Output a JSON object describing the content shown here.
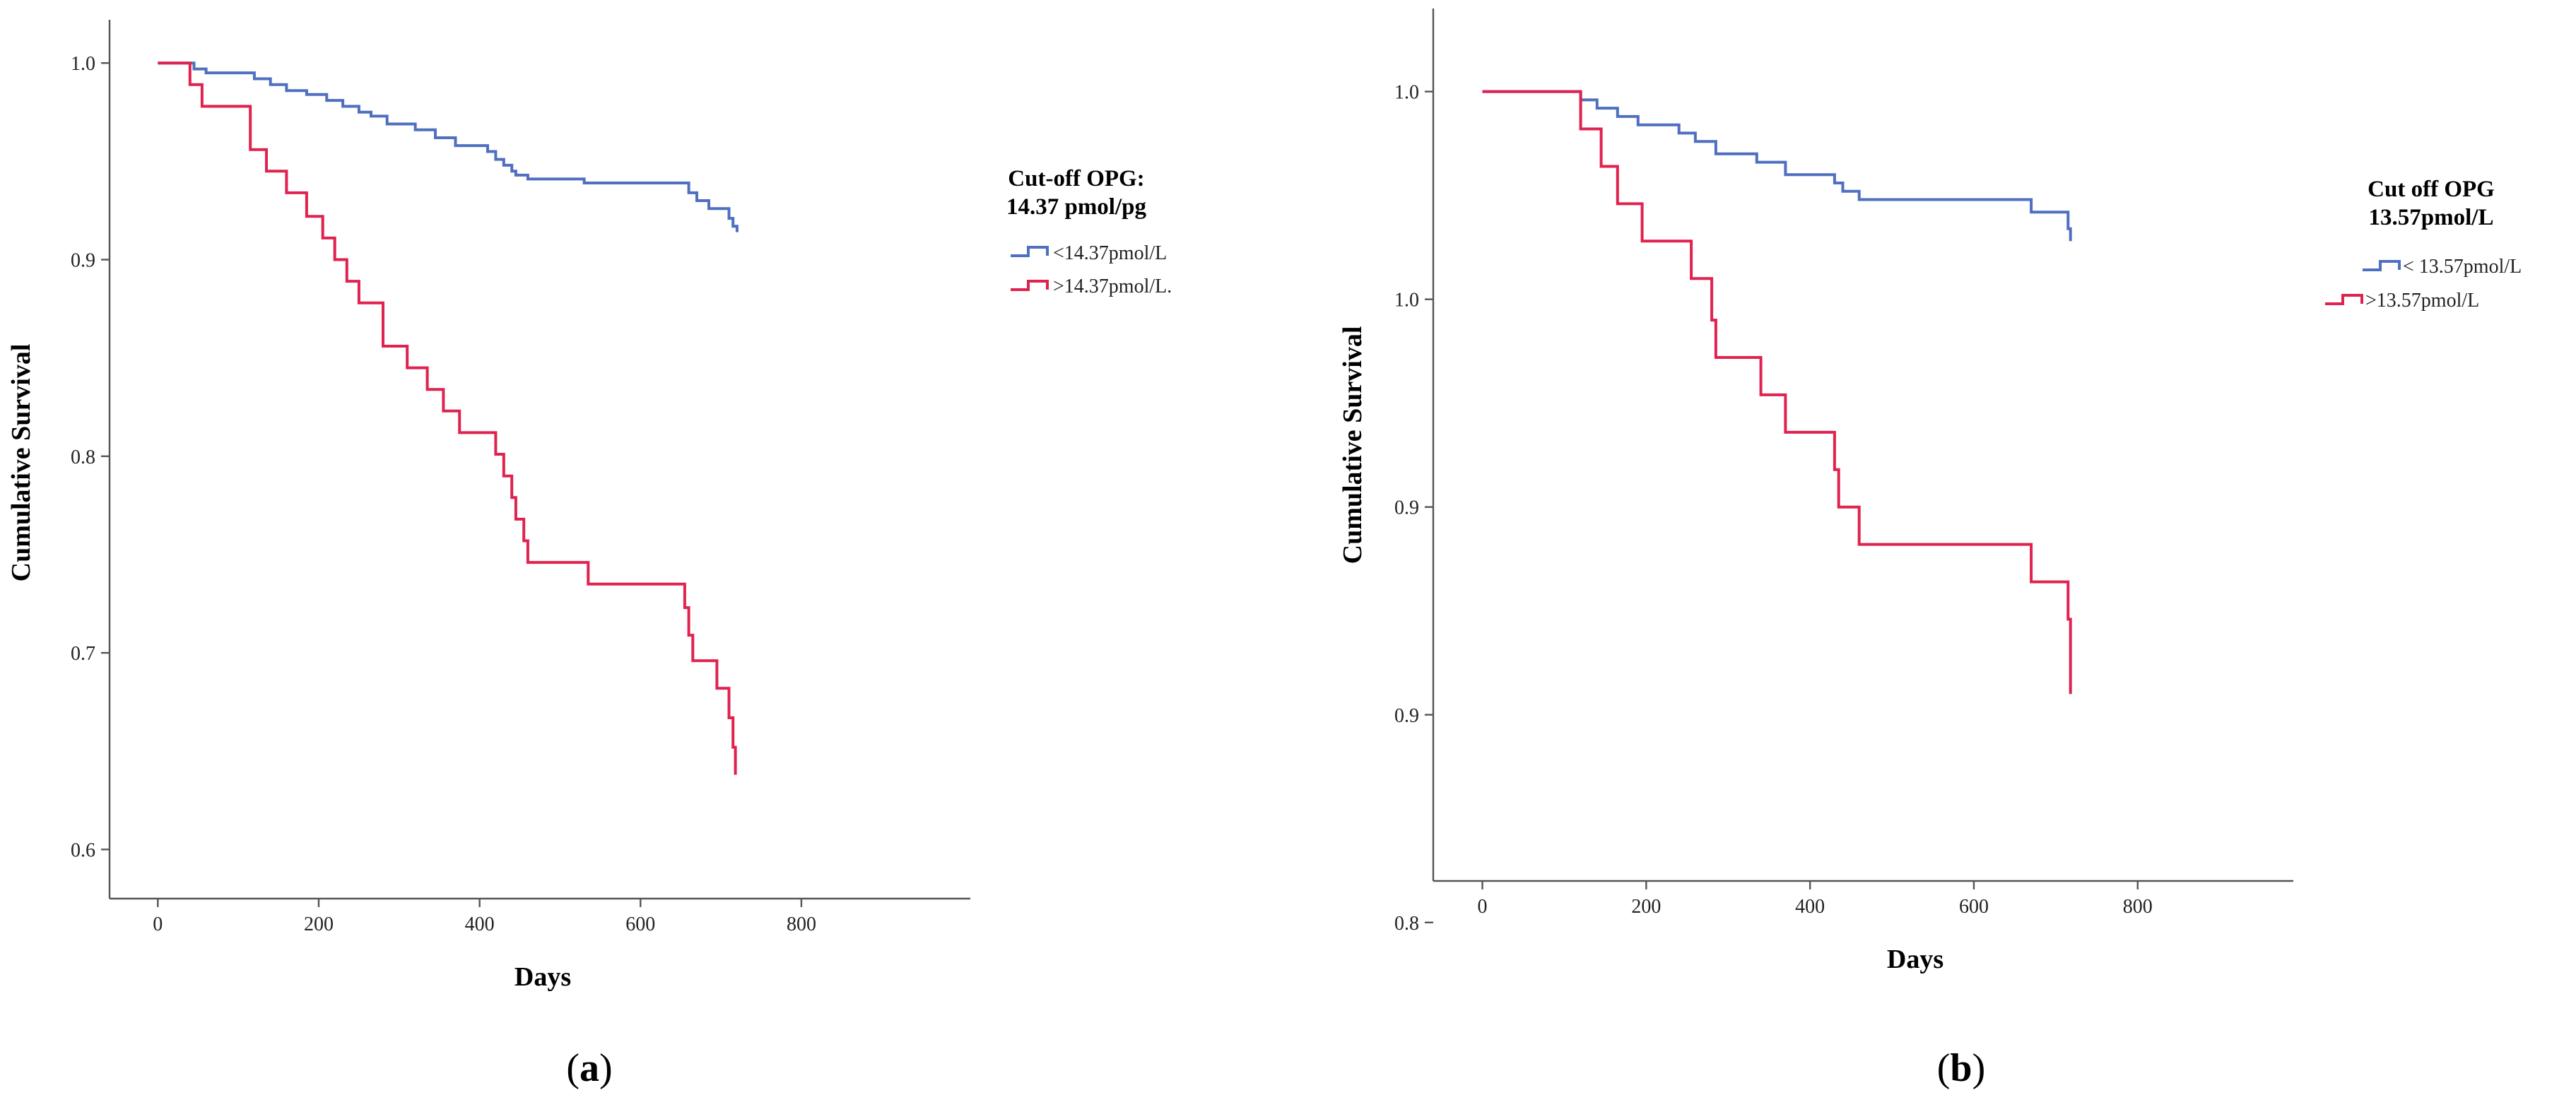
{
  "chart_data": [
    {
      "type": "line",
      "step": true,
      "panel": "a",
      "xlabel": "Days",
      "ylabel": "Cumulative Survival",
      "xlim": [
        -60,
        1010
      ],
      "ylim": [
        0.575,
        1.022
      ],
      "x_ticks": [
        0,
        200,
        400,
        600,
        800
      ],
      "x_tick_labels": [
        "0",
        "200",
        "400",
        "600",
        "800"
      ],
      "y_ticks": [
        1.0,
        0.9,
        0.8,
        0.7,
        0.6
      ],
      "y_tick_labels": [
        "1.0",
        "0.9",
        "0.8",
        "0.7",
        "0.6"
      ],
      "legend": {
        "title_lines": [
          "Cut-off OPG:",
          "14.37 pmol/pg"
        ],
        "position": "right"
      },
      "series": [
        {
          "name": "<14.37pmol/L",
          "color": "#4f6fc0",
          "x": [
            0,
            45,
            60,
            120,
            140,
            160,
            185,
            210,
            230,
            250,
            265,
            285,
            320,
            345,
            370,
            410,
            420,
            430,
            440,
            445,
            460,
            530,
            660,
            670,
            685,
            710,
            715,
            720
          ],
          "y": [
            1.0,
            0.997,
            0.995,
            0.992,
            0.989,
            0.986,
            0.984,
            0.981,
            0.978,
            0.975,
            0.973,
            0.969,
            0.966,
            0.962,
            0.958,
            0.955,
            0.951,
            0.948,
            0.945,
            0.943,
            0.941,
            0.939,
            0.934,
            0.93,
            0.926,
            0.921,
            0.917,
            0.914
          ]
        },
        {
          "name": ">14.37pmol/L.",
          "color": "#e0224f",
          "x": [
            0,
            40,
            55,
            115,
            135,
            160,
            185,
            205,
            220,
            235,
            250,
            280,
            310,
            335,
            355,
            375,
            420,
            430,
            440,
            445,
            455,
            460,
            535,
            655,
            660,
            665,
            675,
            695,
            710,
            715,
            718
          ],
          "y": [
            1.0,
            0.989,
            0.978,
            0.956,
            0.945,
            0.934,
            0.922,
            0.911,
            0.9,
            0.889,
            0.878,
            0.856,
            0.845,
            0.834,
            0.823,
            0.812,
            0.801,
            0.79,
            0.779,
            0.768,
            0.757,
            0.746,
            0.735,
            0.723,
            0.709,
            0.696,
            0.696,
            0.682,
            0.667,
            0.652,
            0.638
          ]
        }
      ],
      "panel_label": {
        "open": "(",
        "letter": "a",
        "close": ")"
      }
    },
    {
      "type": "line",
      "step": true,
      "panel": "b",
      "xlabel": "Days",
      "ylabel": "Cumulative Survival",
      "xlim": [
        -60,
        990
      ],
      "ylim": [
        0.81,
        1.02
      ],
      "x_ticks": [
        0,
        200,
        400,
        600,
        800
      ],
      "x_tick_labels": [
        "0",
        "200",
        "400",
        "600",
        "800"
      ],
      "y_ticks": [
        1.0,
        0.95,
        0.9,
        0.85,
        0.8
      ],
      "y_tick_labels": [
        "1.0",
        "1.0",
        "0.9",
        "0.9",
        "0.8"
      ],
      "legend": {
        "title_lines": [
          "Cut off OPG",
          "13.57pmol/L"
        ],
        "position": "right"
      },
      "series": [
        {
          "name": "< 13.57pmol/L",
          "color": "#4f6fc0",
          "x": [
            0,
            120,
            140,
            165,
            190,
            240,
            260,
            285,
            335,
            370,
            430,
            440,
            460,
            670,
            715,
            718
          ],
          "y": [
            1.0,
            0.998,
            0.996,
            0.994,
            0.992,
            0.99,
            0.988,
            0.985,
            0.983,
            0.98,
            0.978,
            0.976,
            0.974,
            0.971,
            0.967,
            0.964
          ]
        },
        {
          "name": ">13.57pmol/L",
          "color": "#e0224f",
          "x": [
            0,
            120,
            145,
            165,
            195,
            255,
            280,
            285,
            340,
            370,
            430,
            435,
            460,
            670,
            715,
            718
          ],
          "y": [
            1.0,
            0.991,
            0.982,
            0.973,
            0.964,
            0.955,
            0.945,
            0.936,
            0.927,
            0.918,
            0.909,
            0.9,
            0.891,
            0.882,
            0.873,
            0.855
          ]
        }
      ],
      "panel_label": {
        "open": "(",
        "letter": "b",
        "close": ")"
      }
    }
  ]
}
